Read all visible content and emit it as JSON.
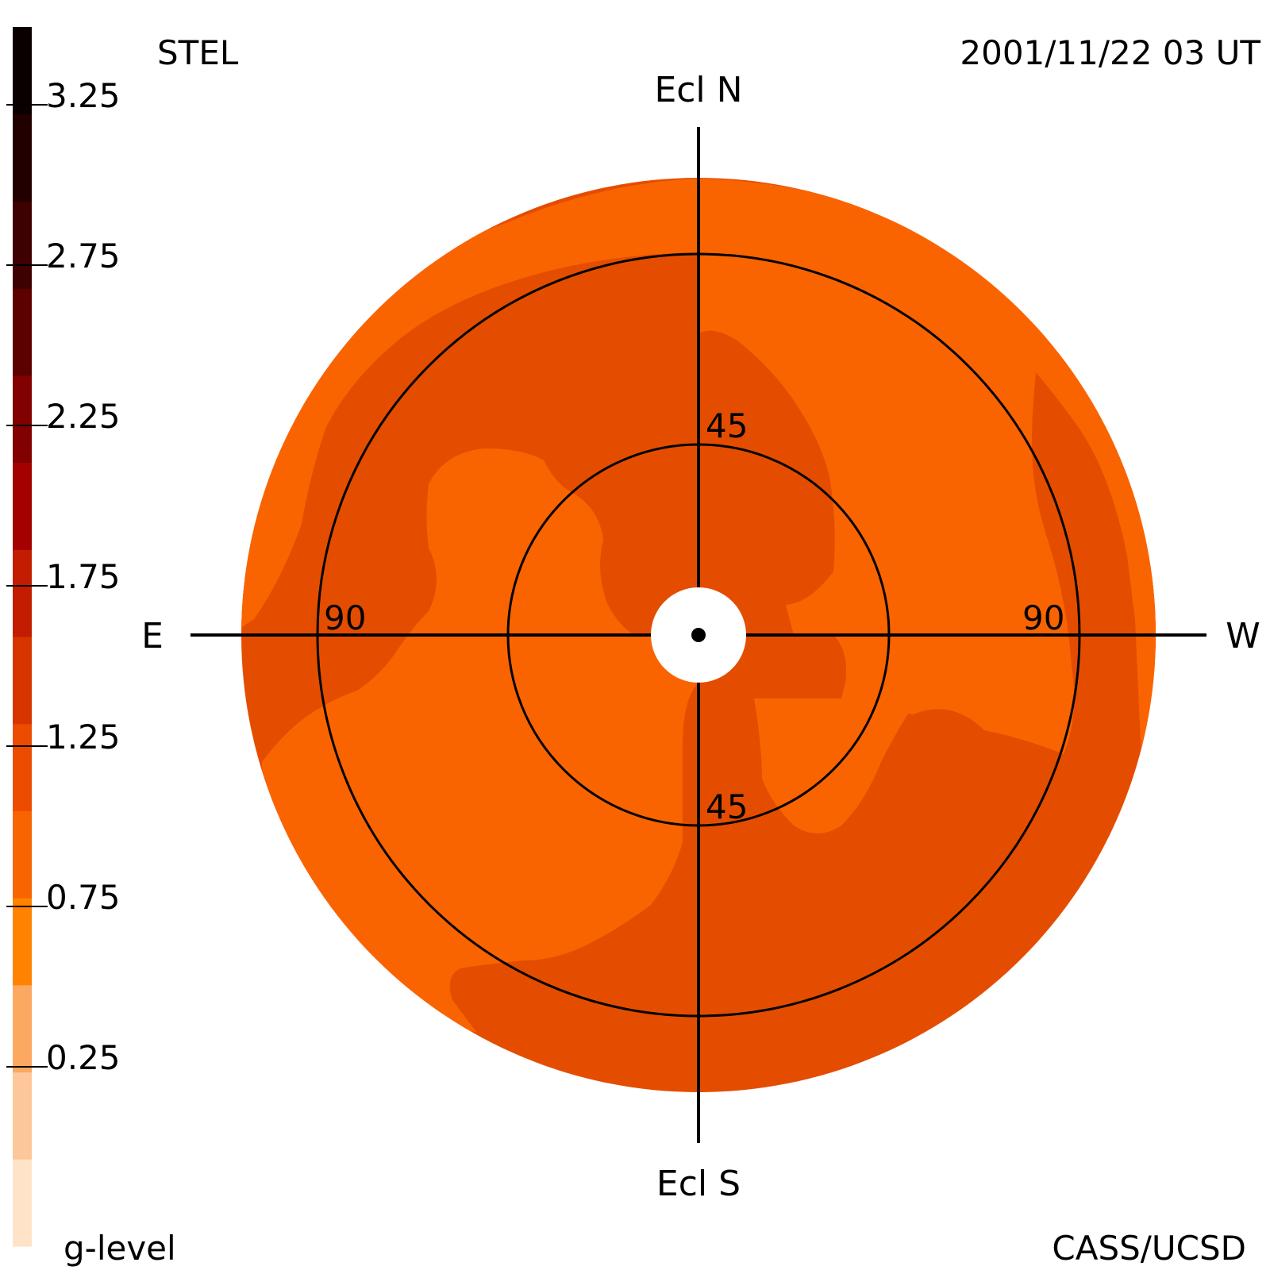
{
  "header": {
    "instrument": "STEL",
    "timestamp": "2001/11/22 03 UT"
  },
  "footer": {
    "scale_label": "g-level",
    "credit": "CASS/UCSD"
  },
  "colorbar": {
    "tick_labels": [
      "3.25",
      "2.75",
      "2.25",
      "1.75",
      "1.25",
      "0.75",
      "0.25"
    ],
    "band_colors": [
      "#ffe3c8",
      "#fdc79a",
      "#fca860",
      "#ff8200",
      "#f86400",
      "#ec4c00",
      "#d63500",
      "#c21d00",
      "#a40000",
      "#820000",
      "#5c0000",
      "#3e0000",
      "#220000",
      "#0a0000"
    ]
  },
  "sky_map": {
    "direction_labels": {
      "north": "Ecl N",
      "south": "Ecl S",
      "east": "E",
      "west": "W"
    },
    "ring_labels": {
      "inner_top": "45",
      "inner_bottom": "45",
      "outer_left": "90",
      "outer_right": "90"
    },
    "colors": {
      "light_region": "#fa6400",
      "dark_region": "#e44d00",
      "grid": "#000000",
      "sun_occulter": "#ffffff"
    }
  }
}
